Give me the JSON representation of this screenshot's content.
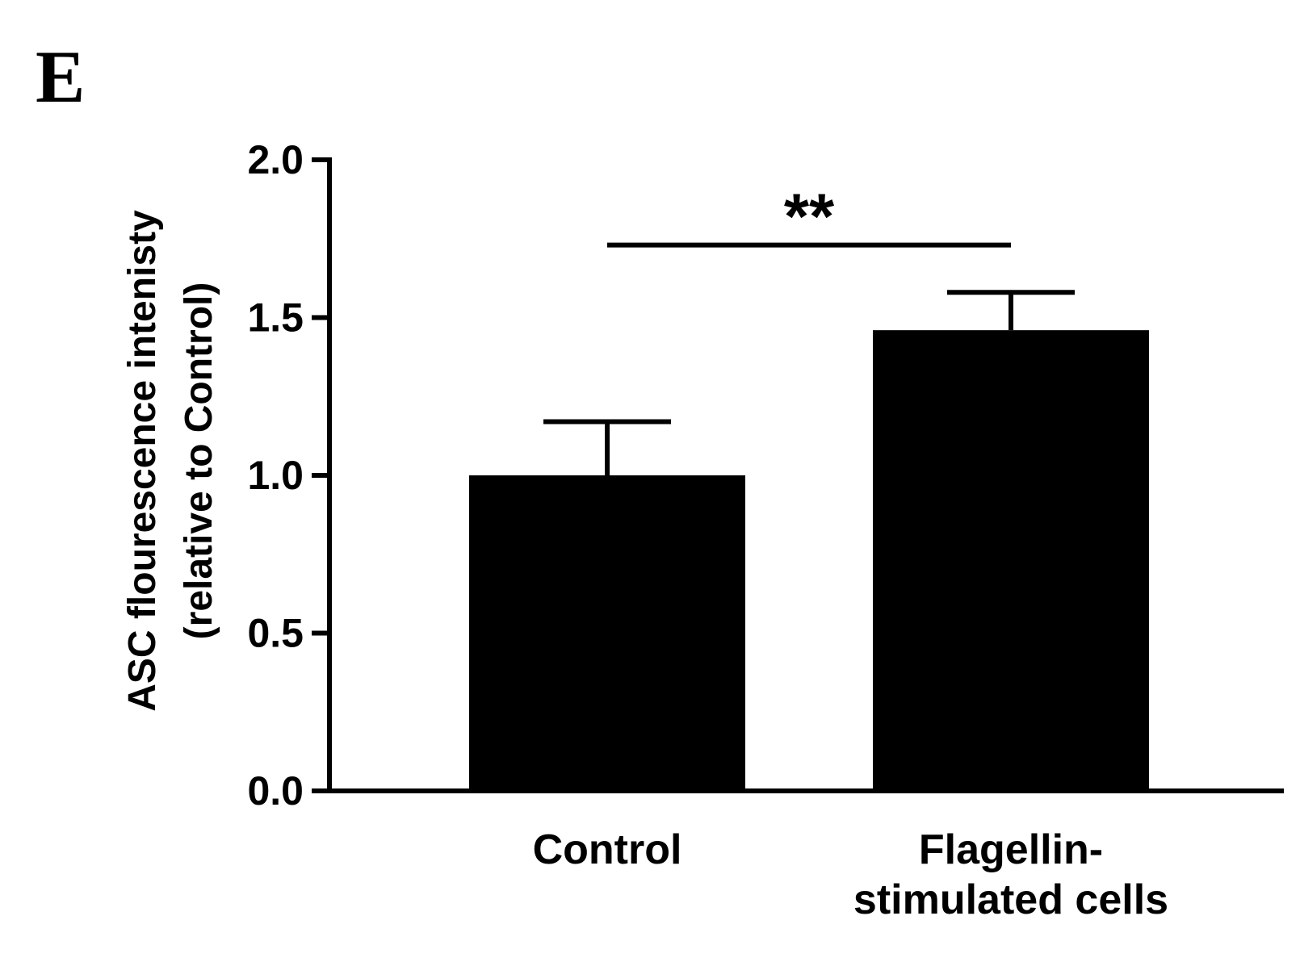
{
  "panel_label": "E",
  "chart_data": {
    "type": "bar",
    "ylabel": {
      "line1": "ASC flourescence intenisty",
      "line2": "(relative to Control)"
    },
    "ylim": [
      0,
      2.0
    ],
    "yticks": [
      "0.0",
      "0.5",
      "1.0",
      "1.5",
      "2.0"
    ],
    "categories": [
      {
        "lines": [
          "Control"
        ]
      },
      {
        "lines": [
          "Flagellin-",
          "stimulated cells"
        ]
      }
    ],
    "values": [
      1.0,
      1.46
    ],
    "error_upper": [
      1.17,
      1.58
    ],
    "bar_color": "#000000",
    "significance": {
      "label": "**",
      "between": [
        0,
        1
      ],
      "level": 1.73
    }
  }
}
